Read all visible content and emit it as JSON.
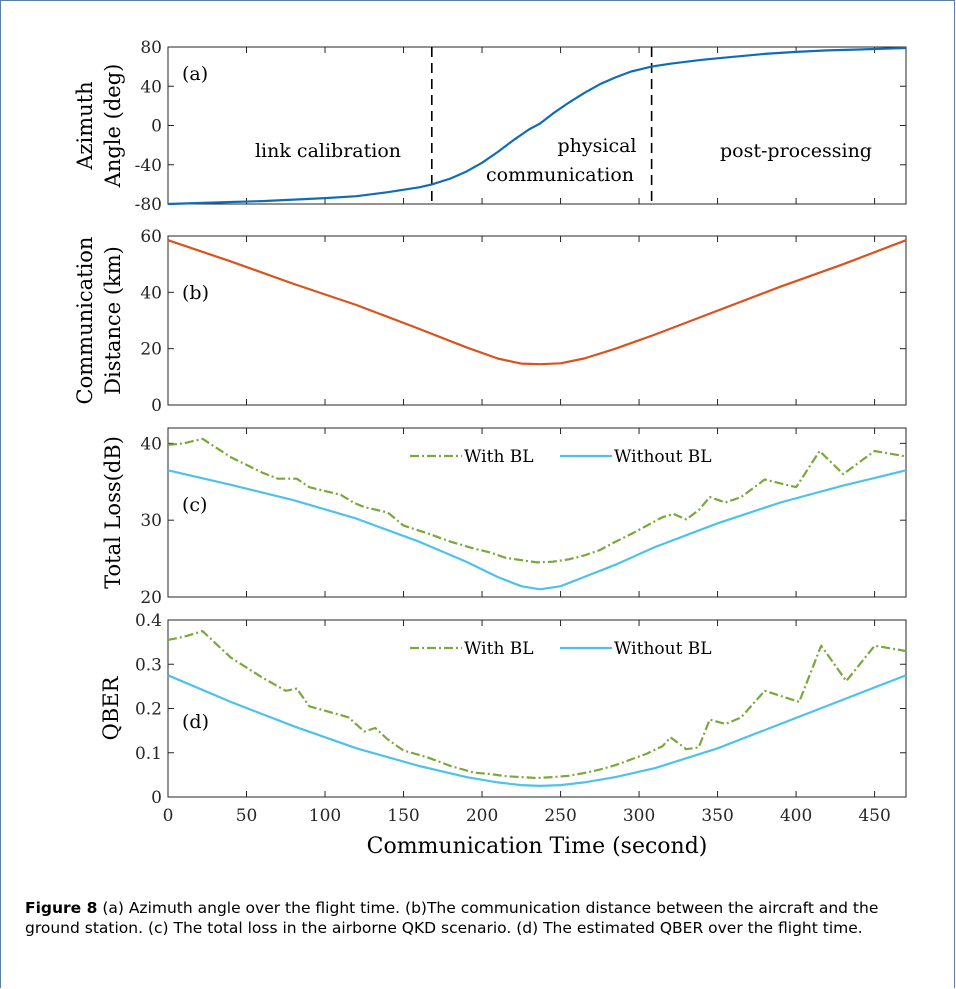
{
  "caption": {
    "label": "Figure 8",
    "text": "(a) Azimuth angle over the flight time. (b)The communication distance between the aircraft and the ground station. (c) The total loss in the airborne QKD scenario. (d) The estimated QBER over the flight time."
  },
  "colors": {
    "azimuth": "#0f6db5",
    "distance": "#d9531e",
    "with_bl": "#78a93a",
    "without_bl": "#4fc1ea"
  },
  "chart_data": [
    {
      "type": "line",
      "panel": "(a)",
      "xlabel": "",
      "ylabel": [
        "Azimuth",
        "Angle (deg)"
      ],
      "xlim": [
        0,
        470
      ],
      "ylim": [
        -80,
        80
      ],
      "yticks": [
        -80,
        -40,
        0,
        40,
        80
      ],
      "grid": false,
      "series": [
        {
          "x": [
            0,
            20,
            40,
            60,
            80,
            100,
            120,
            140,
            160,
            168,
            180,
            190,
            200,
            210,
            220,
            230,
            237,
            245,
            255,
            265,
            275,
            285,
            295,
            308,
            320,
            340,
            360,
            380,
            400,
            420,
            440,
            470
          ],
          "y": [
            -80,
            -79,
            -78,
            -77,
            -75.5,
            -74,
            -72,
            -68,
            -63,
            -60,
            -54,
            -47,
            -38,
            -27,
            -15,
            -4,
            2,
            12,
            23,
            33,
            42,
            49,
            55,
            60,
            63,
            67,
            70,
            73,
            75,
            76.5,
            77.5,
            79
          ]
        }
      ],
      "annotations": [
        "link calibration",
        "physical",
        "communication",
        "post-processing"
      ],
      "vlines": [
        168,
        308
      ]
    },
    {
      "type": "line",
      "panel": "(b)",
      "xlabel": "",
      "ylabel": [
        "Communication",
        "Distance (km)"
      ],
      "xlim": [
        0,
        470
      ],
      "ylim": [
        0,
        60
      ],
      "yticks": [
        0,
        20,
        40,
        60
      ],
      "grid": false,
      "series": [
        {
          "x": [
            0,
            40,
            80,
            120,
            160,
            190,
            210,
            225,
            237,
            250,
            265,
            285,
            310,
            350,
            390,
            430,
            470
          ],
          "y": [
            58.5,
            51,
            43,
            35.5,
            27,
            20.5,
            16.5,
            14.7,
            14.5,
            14.8,
            16.5,
            20,
            25,
            33.5,
            42,
            50,
            58.5
          ]
        }
      ]
    },
    {
      "type": "line",
      "panel": "(c)",
      "xlabel": "",
      "ylabel": "Total Loss(dB)",
      "xlim": [
        0,
        470
      ],
      "ylim": [
        20,
        42
      ],
      "yticks": [
        20,
        30,
        40
      ],
      "grid": false,
      "legend": "top-right",
      "series": [
        {
          "name": "With BL",
          "x": [
            0,
            10,
            22,
            40,
            60,
            70,
            82,
            90,
            110,
            118,
            125,
            140,
            150,
            165,
            180,
            195,
            205,
            215,
            225,
            235,
            245,
            255,
            265,
            275,
            285,
            295,
            305,
            315,
            322,
            330,
            338,
            345,
            355,
            365,
            380,
            400,
            415,
            430,
            450,
            470
          ],
          "y": [
            39.8,
            40,
            40.6,
            38.2,
            36.2,
            35.4,
            35.4,
            34.3,
            33.3,
            32.3,
            31.7,
            31.0,
            29.3,
            28.3,
            27.2,
            26.3,
            25.8,
            25.1,
            24.8,
            24.5,
            24.6,
            24.9,
            25.4,
            26.1,
            27.2,
            28.2,
            29.3,
            30.4,
            30.8,
            30.1,
            31.3,
            33.0,
            32.3,
            33.0,
            35.3,
            34.3,
            39.0,
            36.0,
            39.0,
            38.3
          ]
        },
        {
          "name": "Without BL",
          "x": [
            0,
            40,
            80,
            120,
            160,
            190,
            210,
            225,
            237,
            250,
            265,
            285,
            310,
            350,
            390,
            430,
            470
          ],
          "y": [
            36.5,
            34.6,
            32.6,
            30.2,
            27.2,
            24.6,
            22.6,
            21.4,
            21.0,
            21.4,
            22.6,
            24.2,
            26.5,
            29.6,
            32.3,
            34.5,
            36.5
          ]
        }
      ]
    },
    {
      "type": "line",
      "panel": "(d)",
      "xlabel": "Communication Time (second)",
      "ylabel": "QBER",
      "xlim": [
        0,
        470
      ],
      "ylim": [
        0,
        0.4
      ],
      "yticks": [
        0,
        0.1,
        0.2,
        0.3,
        0.4
      ],
      "xticks": [
        0,
        50,
        100,
        150,
        200,
        250,
        300,
        350,
        400,
        450
      ],
      "grid": false,
      "legend": "top-right",
      "series": [
        {
          "name": "With BL",
          "x": [
            0,
            10,
            22,
            40,
            60,
            75,
            82,
            90,
            110,
            115,
            125,
            132,
            140,
            150,
            165,
            180,
            195,
            205,
            215,
            225,
            235,
            245,
            255,
            265,
            275,
            285,
            295,
            305,
            315,
            320,
            330,
            338,
            345,
            355,
            365,
            380,
            402,
            416,
            432,
            450,
            470
          ],
          "y": [
            0.355,
            0.362,
            0.375,
            0.315,
            0.27,
            0.24,
            0.245,
            0.205,
            0.185,
            0.18,
            0.148,
            0.156,
            0.13,
            0.105,
            0.09,
            0.07,
            0.055,
            0.052,
            0.047,
            0.045,
            0.043,
            0.045,
            0.048,
            0.054,
            0.062,
            0.072,
            0.085,
            0.098,
            0.115,
            0.135,
            0.108,
            0.112,
            0.175,
            0.165,
            0.18,
            0.24,
            0.215,
            0.342,
            0.262,
            0.342,
            0.33
          ]
        },
        {
          "name": "Without BL",
          "x": [
            0,
            40,
            80,
            120,
            160,
            190,
            210,
            225,
            237,
            250,
            265,
            285,
            310,
            350,
            390,
            430,
            470
          ],
          "y": [
            0.275,
            0.215,
            0.16,
            0.11,
            0.07,
            0.045,
            0.033,
            0.027,
            0.025,
            0.027,
            0.033,
            0.045,
            0.065,
            0.11,
            0.165,
            0.22,
            0.275
          ]
        }
      ]
    }
  ]
}
